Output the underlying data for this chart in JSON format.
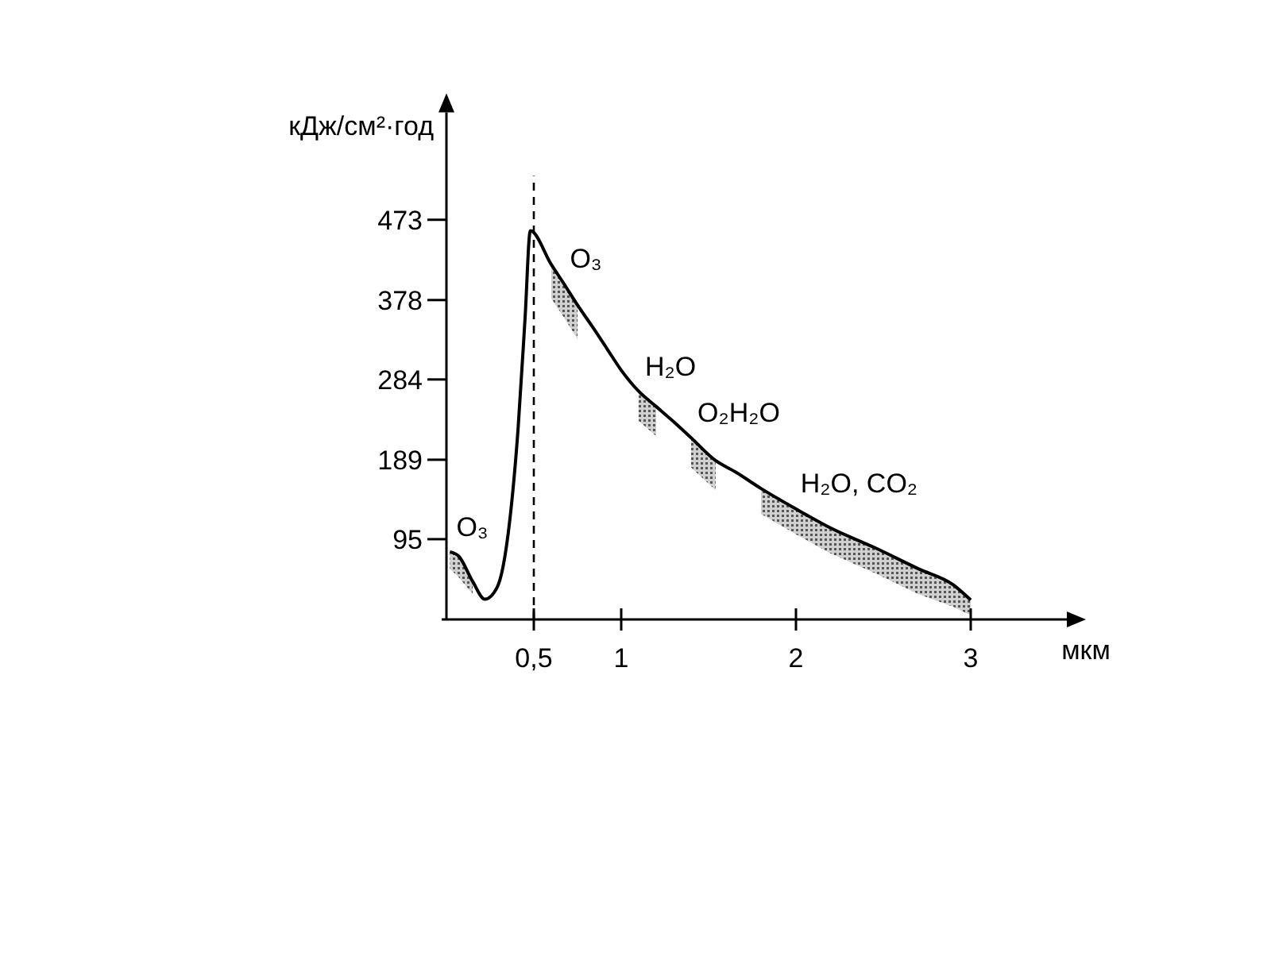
{
  "chart_data": {
    "type": "line",
    "ylabel": "кДж/см²·год",
    "xlabel": "мкм",
    "xlim": [
      0,
      3.55
    ],
    "ylim": [
      0,
      600
    ],
    "xticks": [
      {
        "value": 0.5,
        "label": "0,5"
      },
      1,
      2,
      3
    ],
    "yticks": [
      95,
      189,
      284,
      378,
      473
    ],
    "grid": false,
    "marker": "none",
    "line_style": "solid",
    "ref_lines": [
      {
        "axis": "x",
        "value": 0.5,
        "line_style": "dashed",
        "color": "#000000"
      }
    ],
    "series": [
      {
        "color": "#000000",
        "x": [
          0.02,
          0.07,
          0.15,
          0.22,
          0.29,
          0.36,
          0.41,
          0.45,
          0.48,
          0.6,
          0.67,
          0.75,
          0.83,
          0.92,
          1.0,
          1.1,
          1.2,
          1.3,
          1.4,
          1.54,
          1.65,
          1.8,
          1.99,
          2.2,
          2.45,
          2.7,
          2.9,
          3.0
        ],
        "values": [
          80,
          75,
          45,
          24,
          38,
          113,
          226,
          357,
          460,
          420,
          398,
          372,
          348,
          320,
          295,
          270,
          252,
          234,
          215,
          188,
          175,
          155,
          132,
          108,
          85,
          60,
          41,
          23
        ],
        "lower": [
          60,
          50,
          30,
          null,
          null,
          null,
          null,
          null,
          null,
          380,
          358,
          332,
          null,
          null,
          null,
          235,
          217,
          null,
          180,
          153,
          null,
          125,
          102,
          78,
          55,
          30,
          15,
          5
        ],
        "upper": [
          80,
          75,
          45,
          null,
          null,
          null,
          null,
          null,
          null,
          420,
          398,
          372,
          null,
          null,
          null,
          270,
          252,
          null,
          215,
          188,
          null,
          155,
          132,
          108,
          85,
          60,
          41,
          23
        ]
      }
    ],
    "annotations": [
      {
        "text": "O₃",
        "x": 0.02,
        "y": 80
      },
      {
        "text": "O₃",
        "x": 0.67,
        "y": 398
      },
      {
        "text": "H₂O",
        "x": 1.1,
        "y": 270
      },
      {
        "text": "O₂H₂O",
        "x": 1.4,
        "y": 215
      },
      {
        "text": "H₂O, CO₂",
        "x": 1.99,
        "y": 132
      }
    ]
  }
}
